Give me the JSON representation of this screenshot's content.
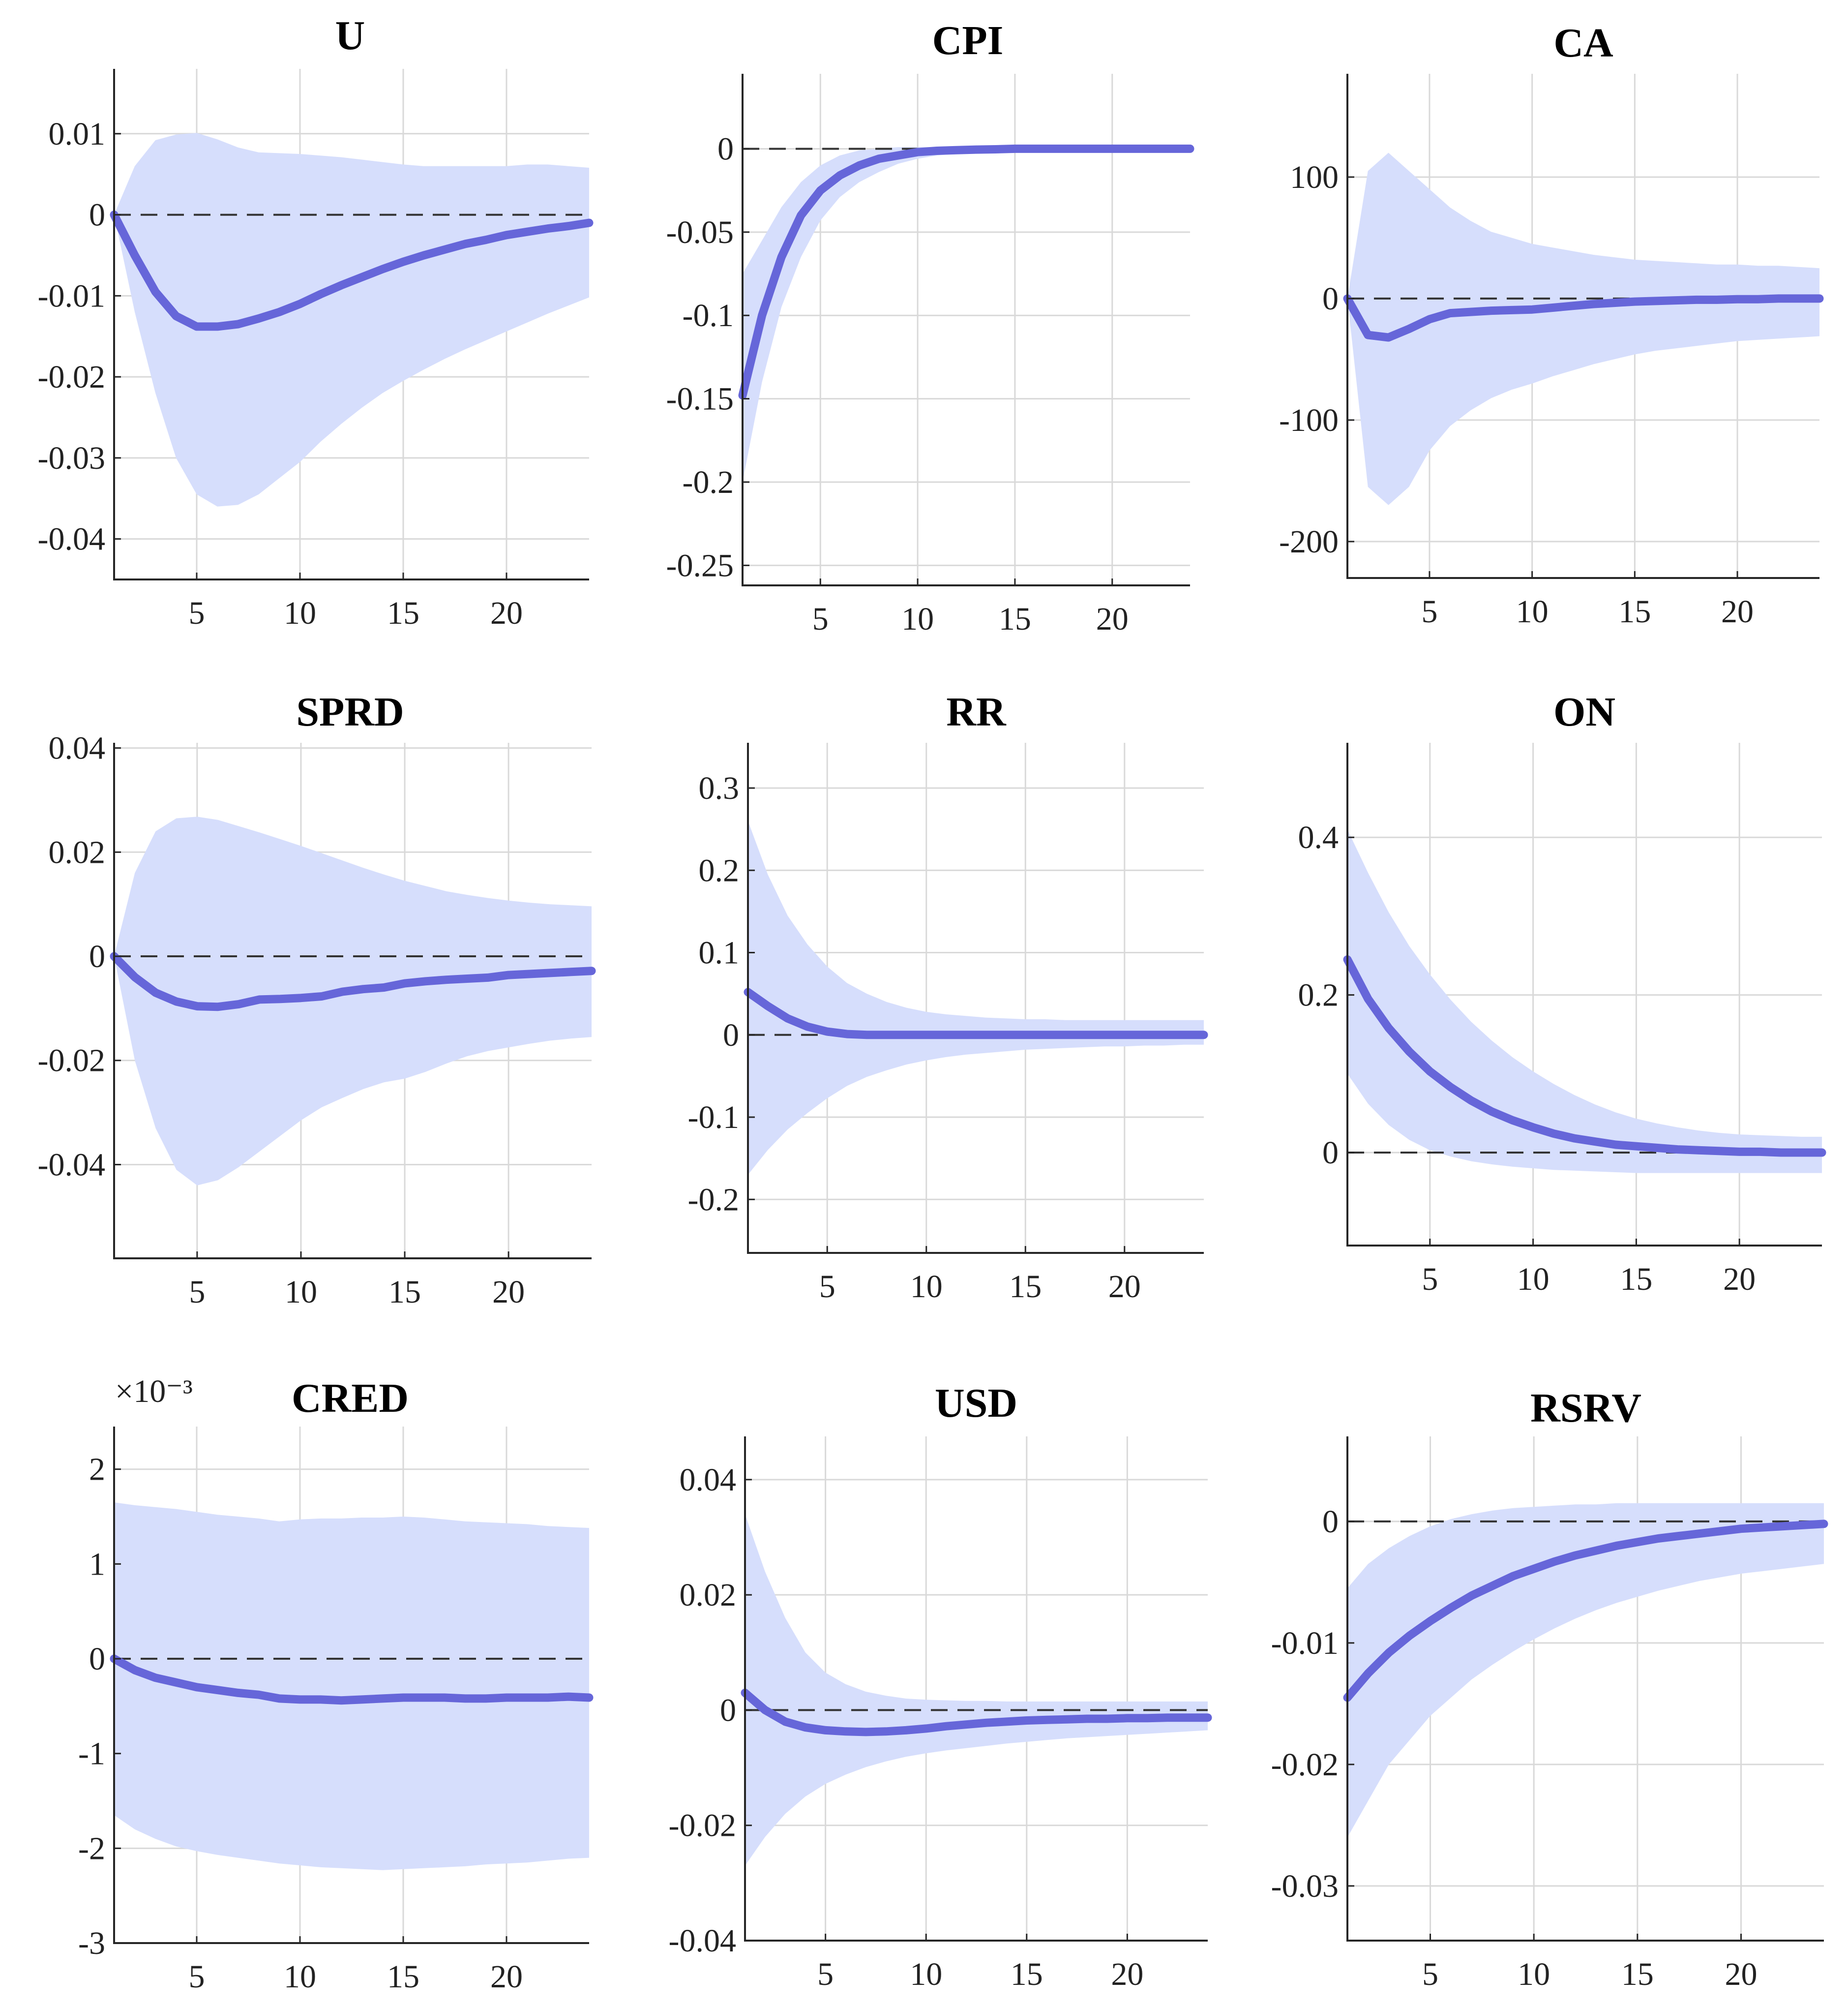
{
  "chart_data": [
    {
      "type": "area",
      "title": "U",
      "xlim": [
        1,
        24
      ],
      "ylim": [
        -0.045,
        0.018
      ],
      "xticks": [
        5,
        10,
        15,
        20
      ],
      "xtick_labels": [
        "5",
        "10",
        "15",
        "20"
      ],
      "yticks": [
        0.01,
        0,
        -0.01,
        -0.02,
        -0.03,
        -0.04
      ],
      "ytick_labels": [
        "0.01",
        "0",
        "-0.01",
        "-0.02",
        "-0.03",
        "-0.04"
      ],
      "x": [
        1,
        2,
        3,
        4,
        5,
        6,
        7,
        8,
        9,
        10,
        11,
        12,
        13,
        14,
        15,
        16,
        17,
        18,
        19,
        20,
        21,
        22,
        23,
        24
      ],
      "response": [
        0,
        -0.005,
        -0.0095,
        -0.0125,
        -0.0138,
        -0.0138,
        -0.0135,
        -0.0128,
        -0.012,
        -0.011,
        -0.0098,
        -0.0087,
        -0.0077,
        -0.0067,
        -0.0058,
        -0.005,
        -0.0043,
        -0.0036,
        -0.0031,
        -0.0025,
        -0.0021,
        -0.0017,
        -0.0014,
        -0.001
      ],
      "lower": [
        0,
        -0.012,
        -0.022,
        -0.03,
        -0.0345,
        -0.036,
        -0.0358,
        -0.0345,
        -0.0325,
        -0.0305,
        -0.028,
        -0.0258,
        -0.0238,
        -0.022,
        -0.0205,
        -0.0191,
        -0.0178,
        -0.0166,
        -0.0155,
        -0.0144,
        -0.0133,
        -0.0122,
        -0.0112,
        -0.0102
      ],
      "upper": [
        0,
        0.006,
        0.0092,
        0.0099,
        0.0101,
        0.0093,
        0.0083,
        0.0077,
        0.0076,
        0.0075,
        0.0073,
        0.0071,
        0.0068,
        0.0065,
        0.0062,
        0.006,
        0.006,
        0.006,
        0.006,
        0.006,
        0.0062,
        0.0062,
        0.006,
        0.0058
      ]
    },
    {
      "type": "area",
      "title": "CPI",
      "xlim": [
        1,
        24
      ],
      "ylim": [
        -0.262,
        0.045
      ],
      "xticks": [
        5,
        10,
        15,
        20
      ],
      "xtick_labels": [
        "5",
        "10",
        "15",
        "20"
      ],
      "yticks": [
        0,
        -0.05,
        -0.1,
        -0.15,
        -0.2,
        -0.25
      ],
      "ytick_labels": [
        "0",
        "-0.05",
        "-0.1",
        "-0.15",
        "-0.2",
        "-0.25"
      ],
      "x": [
        1,
        2,
        3,
        4,
        5,
        6,
        7,
        8,
        9,
        10,
        11,
        12,
        13,
        14,
        15,
        16,
        17,
        18,
        19,
        20,
        21,
        22,
        23,
        24
      ],
      "response": [
        -0.148,
        -0.1,
        -0.065,
        -0.04,
        -0.025,
        -0.016,
        -0.01,
        -0.006,
        -0.004,
        -0.002,
        -0.0012,
        -0.0008,
        -0.0005,
        -0.0003,
        0,
        0,
        0,
        0,
        0,
        0,
        0,
        0,
        0,
        0
      ],
      "lower": [
        -0.2,
        -0.14,
        -0.095,
        -0.065,
        -0.043,
        -0.029,
        -0.02,
        -0.014,
        -0.009,
        -0.006,
        -0.004,
        -0.003,
        -0.002,
        -0.0015,
        -0.001,
        -0.0008,
        -0.0006,
        -0.0005,
        -0.0004,
        -0.0003,
        -0.0003,
        -0.0002,
        -0.0002,
        -0.0002
      ],
      "upper": [
        -0.075,
        -0.055,
        -0.035,
        -0.02,
        -0.01,
        -0.004,
        -0.001,
        0,
        0.001,
        0.001,
        0.001,
        0.001,
        0.001,
        0.001,
        0.001,
        0.001,
        0.001,
        0.001,
        0.001,
        0.001,
        0.001,
        0.001,
        0.001,
        0.001
      ]
    },
    {
      "type": "area",
      "title": "CA",
      "xlim": [
        1,
        24
      ],
      "ylim": [
        -230,
        185
      ],
      "xticks": [
        5,
        10,
        15,
        20
      ],
      "xtick_labels": [
        "5",
        "10",
        "15",
        "20"
      ],
      "yticks": [
        100,
        0,
        -100,
        -200
      ],
      "ytick_labels": [
        "100",
        "0",
        "-100",
        "-200"
      ],
      "x": [
        1,
        2,
        3,
        4,
        5,
        6,
        7,
        8,
        9,
        10,
        11,
        12,
        13,
        14,
        15,
        16,
        17,
        18,
        19,
        20,
        21,
        22,
        23,
        24
      ],
      "response": [
        0,
        -30,
        -32,
        -25,
        -17,
        -12,
        -11,
        -10,
        -9.5,
        -9,
        -7.5,
        -6,
        -4.5,
        -3.5,
        -2.5,
        -2,
        -1.5,
        -1,
        -1,
        -0.5,
        -0.5,
        0,
        0,
        0
      ],
      "lower": [
        0,
        -155,
        -170,
        -155,
        -125,
        -105,
        -92,
        -82,
        -75,
        -70,
        -64,
        -59,
        -54,
        -50,
        -46,
        -43,
        -41,
        -39,
        -37,
        -35,
        -34,
        -33,
        -32,
        -31
      ],
      "upper": [
        0,
        105,
        120,
        105,
        90,
        75,
        64,
        55,
        50,
        45,
        42,
        39,
        36,
        34,
        32,
        31,
        30,
        29,
        28,
        28,
        27,
        27,
        26,
        25
      ]
    },
    {
      "type": "area",
      "title": "SPRD",
      "xlim": [
        1,
        24
      ],
      "ylim": [
        -0.058,
        0.041
      ],
      "xticks": [
        5,
        10,
        15,
        20
      ],
      "xtick_labels": [
        "5",
        "10",
        "15",
        "20"
      ],
      "yticks": [
        0.04,
        0.02,
        0,
        -0.02,
        -0.04
      ],
      "ytick_labels": [
        "0.04",
        "0.02",
        "0",
        "-0.02",
        "-0.04"
      ],
      "x": [
        1,
        2,
        3,
        4,
        5,
        6,
        7,
        8,
        9,
        10,
        11,
        12,
        13,
        14,
        15,
        16,
        17,
        18,
        19,
        20,
        21,
        22,
        23,
        24
      ],
      "response": [
        0,
        -0.004,
        -0.007,
        -0.0087,
        -0.0096,
        -0.0097,
        -0.0092,
        -0.0083,
        -0.0082,
        -0.008,
        -0.0077,
        -0.0068,
        -0.0063,
        -0.006,
        -0.0052,
        -0.0048,
        -0.0045,
        -0.0043,
        -0.0041,
        -0.0036,
        -0.0034,
        -0.0032,
        -0.003,
        -0.0028
      ],
      "lower": [
        0,
        -0.02,
        -0.033,
        -0.041,
        -0.044,
        -0.043,
        -0.0405,
        -0.0375,
        -0.0345,
        -0.0315,
        -0.029,
        -0.0272,
        -0.0255,
        -0.0242,
        -0.0235,
        -0.0222,
        -0.0206,
        -0.0192,
        -0.0182,
        -0.0175,
        -0.0168,
        -0.0162,
        -0.0158,
        -0.0155
      ],
      "upper": [
        0,
        0.016,
        0.024,
        0.0265,
        0.0268,
        0.0262,
        0.025,
        0.0238,
        0.0225,
        0.0212,
        0.0198,
        0.0184,
        0.017,
        0.0157,
        0.0145,
        0.0135,
        0.0125,
        0.0118,
        0.0112,
        0.0107,
        0.0103,
        0.01,
        0.0098,
        0.0096
      ]
    },
    {
      "type": "area",
      "title": "RR",
      "xlim": [
        1,
        24
      ],
      "ylim": [
        -0.265,
        0.355
      ],
      "xticks": [
        5,
        10,
        15,
        20
      ],
      "xtick_labels": [
        "5",
        "10",
        "15",
        "20"
      ],
      "yticks": [
        0.3,
        0.2,
        0.1,
        0,
        -0.1,
        -0.2
      ],
      "ytick_labels": [
        "0.3",
        "0.2",
        "0.1",
        "0",
        "-0.1",
        "-0.2"
      ],
      "x": [
        1,
        2,
        3,
        4,
        5,
        6,
        7,
        8,
        9,
        10,
        11,
        12,
        13,
        14,
        15,
        16,
        17,
        18,
        19,
        20,
        21,
        22,
        23,
        24
      ],
      "response": [
        0.052,
        0.035,
        0.02,
        0.01,
        0.004,
        0.001,
        0,
        0,
        0,
        0,
        0,
        0,
        0,
        0,
        0,
        0,
        0,
        0,
        0,
        0,
        0,
        0,
        0,
        0
      ],
      "lower": [
        -0.17,
        -0.14,
        -0.115,
        -0.095,
        -0.077,
        -0.062,
        -0.051,
        -0.043,
        -0.036,
        -0.031,
        -0.027,
        -0.024,
        -0.022,
        -0.02,
        -0.018,
        -0.017,
        -0.016,
        -0.015,
        -0.014,
        -0.014,
        -0.013,
        -0.013,
        -0.012,
        -0.012
      ],
      "upper": [
        0.26,
        0.195,
        0.145,
        0.11,
        0.083,
        0.063,
        0.05,
        0.04,
        0.033,
        0.028,
        0.025,
        0.023,
        0.021,
        0.02,
        0.019,
        0.019,
        0.018,
        0.018,
        0.018,
        0.018,
        0.018,
        0.018,
        0.018,
        0.018
      ]
    },
    {
      "type": "area",
      "title": "ON",
      "xlim": [
        1,
        24
      ],
      "ylim": [
        -0.118,
        0.52
      ],
      "xticks": [
        5,
        10,
        15,
        20
      ],
      "xtick_labels": [
        "5",
        "10",
        "15",
        "20"
      ],
      "yticks": [
        0.4,
        0.2,
        0
      ],
      "ytick_labels": [
        "0.4",
        "0.2",
        "0"
      ],
      "x": [
        1,
        2,
        3,
        4,
        5,
        6,
        7,
        8,
        9,
        10,
        11,
        12,
        13,
        14,
        15,
        16,
        17,
        18,
        19,
        20,
        21,
        22,
        23,
        24
      ],
      "response": [
        0.245,
        0.195,
        0.158,
        0.128,
        0.103,
        0.083,
        0.066,
        0.052,
        0.041,
        0.032,
        0.024,
        0.018,
        0.014,
        0.01,
        0.008,
        0.006,
        0.004,
        0.003,
        0.002,
        0.001,
        0.001,
        0,
        0,
        0
      ],
      "lower": [
        0.1,
        0.062,
        0.035,
        0.016,
        0.003,
        -0.005,
        -0.011,
        -0.015,
        -0.018,
        -0.02,
        -0.022,
        -0.023,
        -0.024,
        -0.025,
        -0.026,
        -0.026,
        -0.026,
        -0.026,
        -0.026,
        -0.026,
        -0.026,
        -0.026,
        -0.026,
        -0.026
      ],
      "upper": [
        0.41,
        0.355,
        0.305,
        0.262,
        0.226,
        0.194,
        0.166,
        0.142,
        0.121,
        0.103,
        0.087,
        0.073,
        0.061,
        0.051,
        0.043,
        0.037,
        0.032,
        0.028,
        0.025,
        0.023,
        0.022,
        0.021,
        0.02,
        0.02
      ]
    },
    {
      "type": "area",
      "title": "CRED",
      "xlim": [
        1,
        24
      ],
      "ylim": [
        -3,
        2.45
      ],
      "exponent_label": "×10⁻³",
      "xticks": [
        5,
        10,
        15,
        20
      ],
      "xtick_labels": [
        "5",
        "10",
        "15",
        "20"
      ],
      "yticks": [
        2,
        1,
        0,
        -1,
        -2,
        -3
      ],
      "ytick_labels": [
        "2",
        "1",
        "0",
        "-1",
        "-2",
        "-3"
      ],
      "x": [
        1,
        2,
        3,
        4,
        5,
        6,
        7,
        8,
        9,
        10,
        11,
        12,
        13,
        14,
        15,
        16,
        17,
        18,
        19,
        20,
        21,
        22,
        23,
        24
      ],
      "response": [
        0,
        -0.12,
        -0.2,
        -0.25,
        -0.3,
        -0.33,
        -0.36,
        -0.38,
        -0.42,
        -0.43,
        -0.43,
        -0.44,
        -0.43,
        -0.42,
        -0.41,
        -0.41,
        -0.41,
        -0.42,
        -0.42,
        -0.41,
        -0.41,
        -0.41,
        -0.4,
        -0.41
      ],
      "lower": [
        -1.65,
        -1.8,
        -1.9,
        -1.98,
        -2.03,
        -2.07,
        -2.1,
        -2.13,
        -2.16,
        -2.18,
        -2.2,
        -2.21,
        -2.22,
        -2.23,
        -2.22,
        -2.21,
        -2.2,
        -2.19,
        -2.17,
        -2.16,
        -2.15,
        -2.13,
        -2.11,
        -2.1
      ],
      "upper": [
        1.65,
        1.62,
        1.6,
        1.58,
        1.55,
        1.52,
        1.5,
        1.48,
        1.45,
        1.47,
        1.48,
        1.48,
        1.49,
        1.49,
        1.5,
        1.49,
        1.47,
        1.45,
        1.44,
        1.43,
        1.42,
        1.4,
        1.39,
        1.38
      ]
    },
    {
      "type": "area",
      "title": "USD",
      "xlim": [
        1,
        24
      ],
      "ylim": [
        -0.04,
        0.0475
      ],
      "xticks": [
        5,
        10,
        15,
        20
      ],
      "xtick_labels": [
        "5",
        "10",
        "15",
        "20"
      ],
      "yticks": [
        0.04,
        0.02,
        0,
        -0.02,
        -0.04
      ],
      "ytick_labels": [
        "0.04",
        "0.02",
        "0",
        "-0.02",
        "-0.04"
      ],
      "x": [
        1,
        2,
        3,
        4,
        5,
        6,
        7,
        8,
        9,
        10,
        11,
        12,
        13,
        14,
        15,
        16,
        17,
        18,
        19,
        20,
        21,
        22,
        23,
        24
      ],
      "response": [
        0.003,
        0,
        -0.002,
        -0.003,
        -0.0035,
        -0.0037,
        -0.0038,
        -0.0037,
        -0.0035,
        -0.0032,
        -0.0028,
        -0.0025,
        -0.0022,
        -0.002,
        -0.0018,
        -0.0017,
        -0.0016,
        -0.0015,
        -0.0015,
        -0.0014,
        -0.0014,
        -0.0013,
        -0.0013,
        -0.0013
      ],
      "lower": [
        -0.027,
        -0.022,
        -0.018,
        -0.015,
        -0.0128,
        -0.0112,
        -0.0099,
        -0.0089,
        -0.0081,
        -0.0075,
        -0.007,
        -0.0066,
        -0.0062,
        -0.0058,
        -0.0055,
        -0.0052,
        -0.0049,
        -0.0047,
        -0.0045,
        -0.0043,
        -0.0041,
        -0.0039,
        -0.0037,
        -0.0035
      ],
      "upper": [
        0.034,
        0.024,
        0.016,
        0.01,
        0.0065,
        0.0045,
        0.0032,
        0.0025,
        0.002,
        0.0018,
        0.0017,
        0.0016,
        0.0016,
        0.0015,
        0.0015,
        0.0015,
        0.0015,
        0.0015,
        0.0015,
        0.0015,
        0.0015,
        0.0015,
        0.0015,
        0.0015
      ]
    },
    {
      "type": "area",
      "title": "RSRV",
      "xlim": [
        1,
        24
      ],
      "ylim": [
        -0.0345,
        0.007
      ],
      "xticks": [
        5,
        10,
        15,
        20
      ],
      "xtick_labels": [
        "5",
        "10",
        "15",
        "20"
      ],
      "yticks": [
        0,
        -0.01,
        -0.02,
        -0.03
      ],
      "ytick_labels": [
        "0",
        "-0.01",
        "-0.02",
        "-0.03"
      ],
      "x": [
        1,
        2,
        3,
        4,
        5,
        6,
        7,
        8,
        9,
        10,
        11,
        12,
        13,
        14,
        15,
        16,
        17,
        18,
        19,
        20,
        21,
        22,
        23,
        24
      ],
      "response": [
        -0.0145,
        -0.0125,
        -0.0108,
        -0.0094,
        -0.0082,
        -0.0071,
        -0.0061,
        -0.0053,
        -0.0045,
        -0.0039,
        -0.0033,
        -0.0028,
        -0.0024,
        -0.002,
        -0.0017,
        -0.0014,
        -0.0012,
        -0.001,
        -0.0008,
        -0.0006,
        -0.0005,
        -0.0004,
        -0.0003,
        -0.0002
      ],
      "lower": [
        -0.026,
        -0.023,
        -0.02,
        -0.018,
        -0.016,
        -0.0145,
        -0.013,
        -0.0118,
        -0.0107,
        -0.0097,
        -0.0088,
        -0.008,
        -0.0073,
        -0.0067,
        -0.0062,
        -0.0057,
        -0.0053,
        -0.0049,
        -0.0046,
        -0.0043,
        -0.0041,
        -0.0039,
        -0.0037,
        -0.0035
      ],
      "upper": [
        -0.0055,
        -0.0035,
        -0.0022,
        -0.0012,
        -0.0004,
        0.0002,
        0.0006,
        0.0009,
        0.0011,
        0.0012,
        0.0013,
        0.0014,
        0.0014,
        0.0015,
        0.0015,
        0.0015,
        0.0015,
        0.0015,
        0.0015,
        0.0015,
        0.0015,
        0.0015,
        0.0015,
        0.0015
      ]
    }
  ]
}
